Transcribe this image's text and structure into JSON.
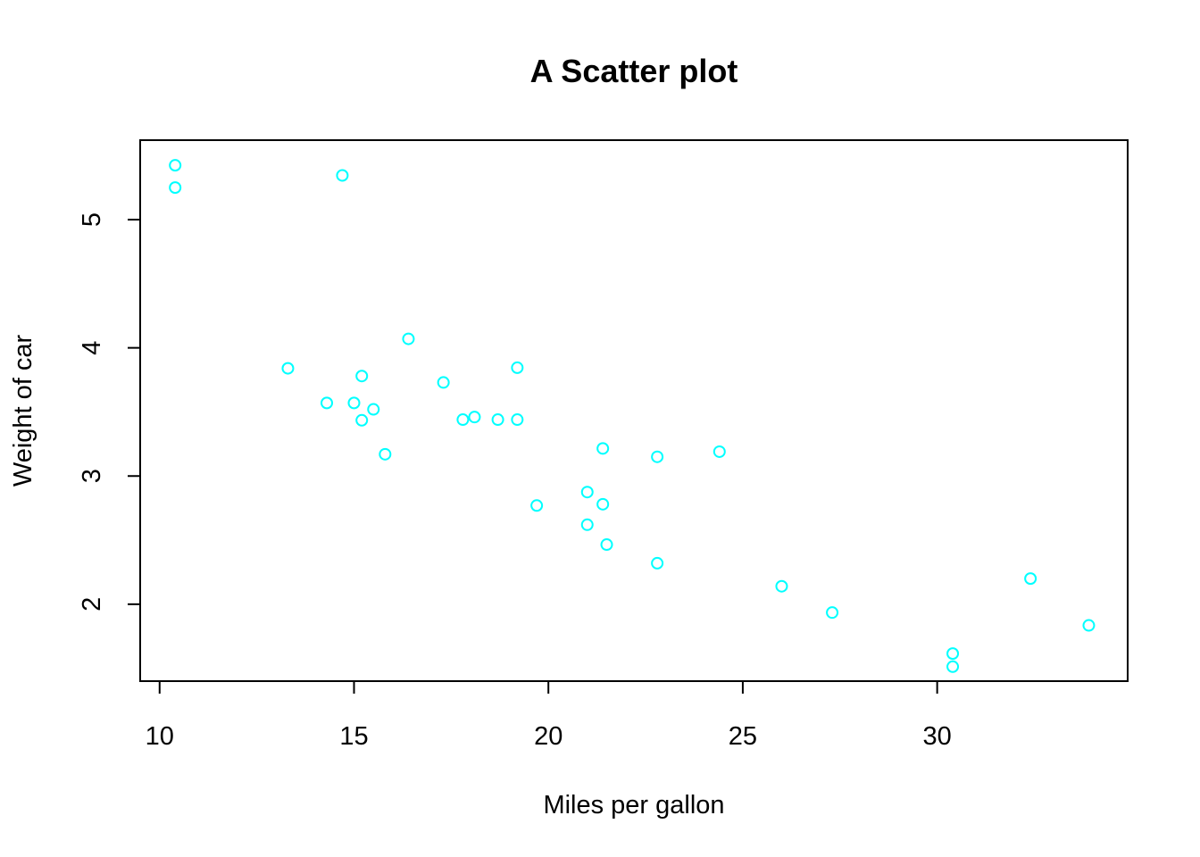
{
  "chart_data": {
    "type": "scatter",
    "title": "A Scatter plot",
    "xlabel": "Miles per gallon",
    "ylabel": "Weight of car",
    "xlim": [
      9.5,
      34.9
    ],
    "ylim": [
      1.4,
      5.62
    ],
    "xticks": [
      10,
      15,
      20,
      25,
      30
    ],
    "yticks": [
      2,
      3,
      4,
      5
    ],
    "grid": false,
    "legend": "none",
    "point_color": "#00FFFF",
    "x": [
      21.0,
      21.0,
      22.8,
      21.4,
      18.7,
      18.1,
      14.3,
      24.4,
      22.8,
      19.2,
      17.8,
      16.4,
      17.3,
      15.2,
      10.4,
      10.4,
      14.7,
      32.4,
      30.4,
      33.9,
      21.5,
      15.5,
      15.2,
      13.3,
      19.2,
      27.3,
      26.0,
      30.4,
      15.8,
      19.7,
      15.0,
      21.4
    ],
    "y": [
      2.62,
      2.875,
      2.32,
      3.215,
      3.44,
      3.46,
      3.57,
      3.19,
      3.15,
      3.44,
      3.44,
      4.07,
      3.73,
      3.78,
      5.25,
      5.424,
      5.345,
      2.2,
      1.615,
      1.835,
      2.465,
      3.52,
      3.435,
      3.84,
      3.845,
      1.935,
      2.14,
      1.513,
      3.17,
      2.77,
      3.57,
      2.78
    ]
  }
}
